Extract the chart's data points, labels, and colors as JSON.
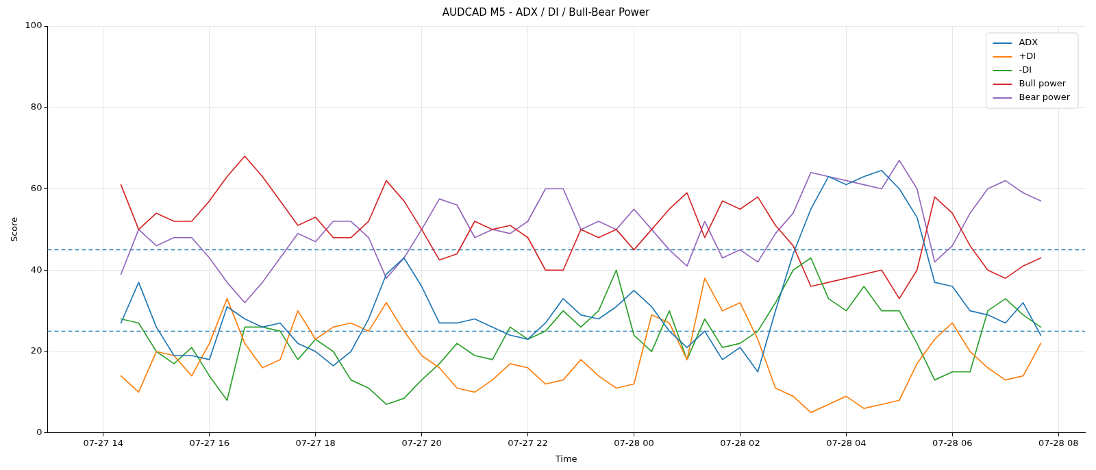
{
  "chart_data": {
    "type": "line",
    "title": "AUDCAD M5 - ADX / DI / Bull-Bear Power",
    "xlabel": "Time",
    "ylabel": "Score",
    "x": [
      "--07-27T14:20",
      "--07-27T14:40",
      "--07-27T15:00",
      "--07-27T15:20",
      "--07-27T15:40",
      "--07-27T16:00",
      "--07-27T16:20",
      "--07-27T16:40",
      "--07-27T17:00",
      "--07-27T17:20",
      "--07-27T17:40",
      "--07-27T18:00",
      "--07-27T18:20",
      "--07-27T18:40",
      "--07-27T19:00",
      "--07-27T19:20",
      "--07-27T19:40",
      "--07-27T20:00",
      "--07-27T20:20",
      "--07-27T20:40",
      "--07-27T21:00",
      "--07-27T21:20",
      "--07-27T21:40",
      "--07-27T22:00",
      "--07-27T22:20",
      "--07-27T22:40",
      "--07-27T23:00",
      "--07-27T23:20",
      "--07-27T23:40",
      "--07-28T00:00",
      "--07-28T00:20",
      "--07-28T00:40",
      "--07-28T01:00",
      "--07-28T01:20",
      "--07-28T01:40",
      "--07-28T02:00",
      "--07-28T02:20",
      "--07-28T02:40",
      "--07-28T03:00",
      "--07-28T03:20",
      "--07-28T03:40",
      "--07-28T04:00",
      "--07-28T04:20",
      "--07-28T04:40",
      "--07-28T05:00",
      "--07-28T05:20",
      "--07-28T05:40",
      "--07-28T06:00",
      "--07-28T06:20",
      "--07-28T06:40",
      "--07-28T07:00",
      "--07-28T07:20",
      "--07-28T07:40"
    ],
    "series": [
      {
        "name": "ADX",
        "color": "#1f77b4",
        "values": [
          27,
          37,
          26,
          19,
          19,
          18,
          31,
          28,
          26,
          27,
          22,
          20,
          16.5,
          20,
          28,
          39,
          43,
          36,
          27,
          27,
          28,
          26,
          24,
          23,
          27,
          33,
          29,
          28,
          31,
          35,
          31,
          25,
          21,
          25,
          18,
          21,
          15,
          30,
          44,
          55,
          63,
          61,
          63,
          64.5,
          60,
          53,
          37,
          36,
          30,
          29,
          27,
          32,
          24
        ]
      },
      {
        "name": "+DI",
        "color": "#ff7f0e",
        "values": [
          14,
          10,
          20,
          19,
          14,
          22,
          33,
          22,
          16,
          18,
          30,
          23,
          26,
          27,
          25,
          32,
          25,
          19,
          16,
          11,
          10,
          13,
          17,
          16,
          12,
          13,
          18,
          14,
          11,
          12,
          29,
          27,
          18,
          38,
          30,
          32,
          23,
          11,
          9,
          5,
          7,
          9,
          6,
          7,
          8,
          17,
          23,
          27,
          20,
          16,
          13,
          14,
          22
        ]
      },
      {
        "name": "-DI",
        "color": "#2ca02c",
        "values": [
          28,
          27,
          20,
          17,
          21,
          14,
          8,
          26,
          26,
          25,
          18,
          23,
          20,
          13,
          11,
          7,
          8.5,
          13,
          17,
          22,
          19,
          18,
          26,
          23,
          25,
          30,
          26,
          30,
          40,
          24,
          20,
          30,
          18,
          28,
          21,
          22,
          25,
          32,
          40,
          43,
          33,
          30,
          36,
          30,
          30,
          22,
          13,
          15,
          15,
          30,
          33,
          29,
          26
        ]
      },
      {
        "name": "Bull power",
        "color": "#d62728",
        "values": [
          61,
          50,
          54,
          52,
          52,
          57,
          63,
          68,
          63,
          57,
          51,
          53,
          48,
          48,
          52,
          62,
          57,
          50,
          42.5,
          44,
          52,
          50,
          51,
          48,
          40,
          40,
          50,
          48,
          50,
          45,
          50,
          55,
          59,
          48,
          57,
          55,
          58,
          51,
          46,
          36,
          37,
          38,
          39,
          40,
          33,
          40,
          58,
          54,
          46,
          40,
          38,
          41,
          43
        ]
      },
      {
        "name": "Bear power",
        "color": "#9467bd",
        "values": [
          39,
          50,
          46,
          48,
          48,
          43,
          37,
          32,
          37,
          43,
          49,
          47,
          52,
          52,
          48,
          38,
          43,
          50,
          57.5,
          56,
          48,
          50,
          49,
          52,
          60,
          60,
          50,
          52,
          50,
          55,
          50,
          45,
          41,
          52,
          43,
          45,
          42,
          49,
          54,
          64,
          63,
          62,
          61,
          60,
          67,
          60,
          42,
          46,
          54,
          60,
          62,
          59,
          57
        ]
      }
    ],
    "xlim": [
      "--07-27T12:57",
      "--07-28T08:30"
    ],
    "xticks": [
      {
        "value": "--07-27T14:00",
        "label": "07-27 14"
      },
      {
        "value": "--07-27T16:00",
        "label": "07-27 16"
      },
      {
        "value": "--07-27T18:00",
        "label": "07-27 18"
      },
      {
        "value": "--07-27T20:00",
        "label": "07-27 20"
      },
      {
        "value": "--07-27T22:00",
        "label": "07-27 22"
      },
      {
        "value": "--07-28T00:00",
        "label": "07-28 00"
      },
      {
        "value": "--07-28T02:00",
        "label": "07-28 02"
      },
      {
        "value": "--07-28T04:00",
        "label": "07-28 04"
      },
      {
        "value": "--07-28T06:00",
        "label": "07-28 06"
      },
      {
        "value": "--07-28T08:00",
        "label": "07-28 08"
      }
    ],
    "ylim": [
      0,
      100
    ],
    "yticks": [
      0,
      20,
      40,
      60,
      80,
      100
    ],
    "ref_lines": [
      {
        "axis": "y",
        "value": 45,
        "color": "#1f77b4",
        "line_style": "dashed"
      },
      {
        "axis": "y",
        "value": 25,
        "color": "#1f77b4",
        "line_style": "dashed"
      }
    ],
    "grid": true,
    "legend": "top right"
  }
}
